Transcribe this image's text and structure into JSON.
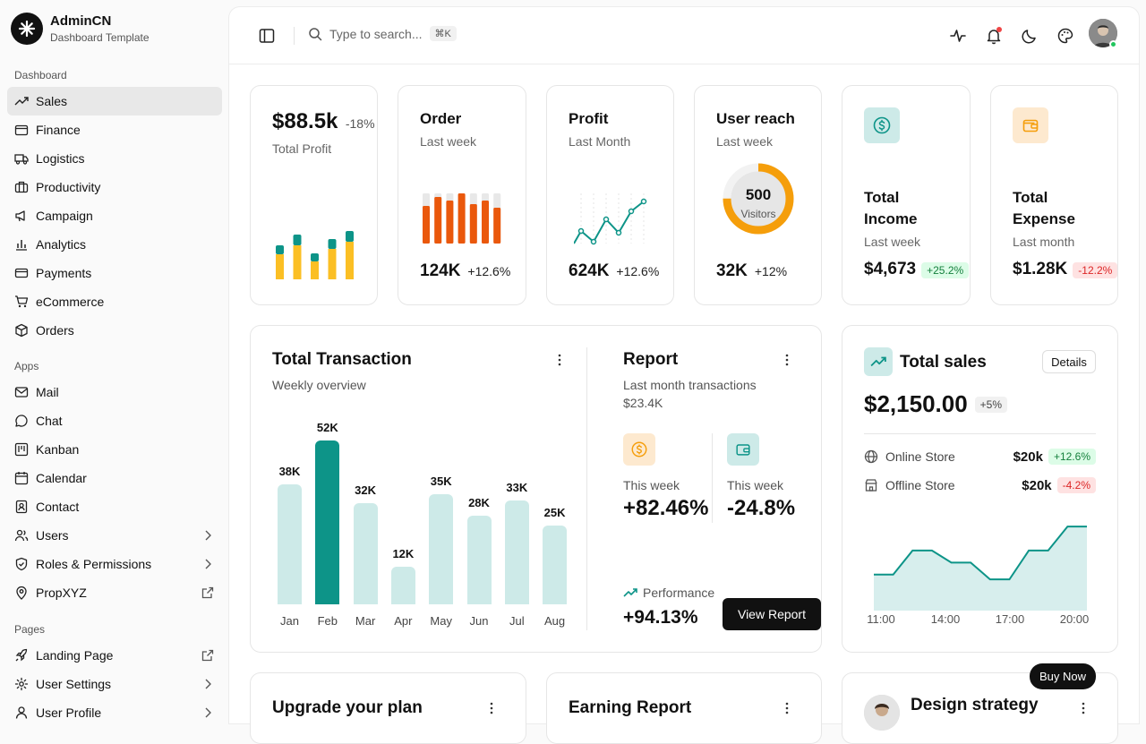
{
  "brand": {
    "name": "AdminCN",
    "subtitle": "Dashboard Template"
  },
  "sidebar": {
    "groups": [
      {
        "label": "Dashboard",
        "items": [
          {
            "label": "Sales",
            "icon": "trending-up-icon",
            "active": true
          },
          {
            "label": "Finance",
            "icon": "wallet-icon"
          },
          {
            "label": "Logistics",
            "icon": "truck-icon"
          },
          {
            "label": "Productivity",
            "icon": "briefcase-icon"
          },
          {
            "label": "Campaign",
            "icon": "megaphone-icon"
          },
          {
            "label": "Analytics",
            "icon": "bar-chart-icon"
          },
          {
            "label": "Payments",
            "icon": "credit-card-icon"
          },
          {
            "label": "eCommerce",
            "icon": "cart-icon"
          },
          {
            "label": "Orders",
            "icon": "package-icon"
          }
        ]
      },
      {
        "label": "Apps",
        "items": [
          {
            "label": "Mail",
            "icon": "mail-icon"
          },
          {
            "label": "Chat",
            "icon": "chat-icon"
          },
          {
            "label": "Kanban",
            "icon": "kanban-icon"
          },
          {
            "label": "Calendar",
            "icon": "calendar-icon"
          },
          {
            "label": "Contact",
            "icon": "contact-icon"
          },
          {
            "label": "Users",
            "icon": "users-icon",
            "trailing": "chevron-right-icon"
          },
          {
            "label": "Roles & Permissions",
            "icon": "shield-icon",
            "trailing": "chevron-right-icon"
          },
          {
            "label": "PropXYZ",
            "icon": "map-pin-icon",
            "trailing": "external-link-icon"
          }
        ]
      },
      {
        "label": "Pages",
        "items": [
          {
            "label": "Landing Page",
            "icon": "rocket-icon",
            "trailing": "external-link-icon"
          },
          {
            "label": "User Settings",
            "icon": "settings-icon",
            "trailing": "chevron-right-icon"
          },
          {
            "label": "User Profile",
            "icon": "user-icon",
            "trailing": "chevron-right-icon"
          }
        ]
      }
    ]
  },
  "topbar": {
    "search_placeholder": "Type to search...",
    "shortcut": "⌘K",
    "icons": [
      "sidebar-toggle-icon",
      "activity-icon",
      "bell-icon",
      "moon-icon",
      "palette-icon"
    ],
    "notification_dot_color": "#ef4444"
  },
  "kpis": {
    "total_profit": {
      "value": "$88.5k",
      "change": "-18%",
      "label": "Total Profit"
    },
    "order": {
      "title": "Order",
      "period": "Last week",
      "value": "124K",
      "change": "+12.6%"
    },
    "profit": {
      "title": "Profit",
      "period": "Last Month",
      "value": "624K",
      "change": "+12.6%"
    },
    "user_reach": {
      "title": "User reach",
      "period": "Last week",
      "center_value": "500",
      "center_label": "Visitors",
      "value": "32K",
      "change": "+12%",
      "progress": 0.75
    },
    "total_income": {
      "title": "Total Income",
      "period": "Last week",
      "value": "$4,673",
      "change": "+25.2%",
      "icon": "dollar-icon"
    },
    "total_expense": {
      "title": "Total Expense",
      "period": "Last month",
      "value": "$1.28K",
      "change": "-12.2%",
      "icon": "wallet-icon"
    }
  },
  "total_transaction": {
    "title": "Total Transaction",
    "subtitle": "Weekly overview",
    "chart_data": {
      "type": "bar",
      "categories": [
        "Jan",
        "Feb",
        "Mar",
        "Apr",
        "May",
        "Jun",
        "Jul",
        "Aug"
      ],
      "values": [
        38,
        52,
        32,
        12,
        35,
        28,
        33,
        25
      ],
      "data_labels": [
        "38K",
        "52K",
        "32K",
        "12K",
        "35K",
        "28K",
        "33K",
        "25K"
      ],
      "highlight_index": 1
    }
  },
  "report": {
    "title": "Report",
    "subtitle": "Last month transactions",
    "amount": "$23.4K",
    "stats": [
      {
        "label": "This week",
        "value": "+82.46%",
        "icon": "dollar-icon"
      },
      {
        "label": "This week",
        "value": "-24.8%",
        "icon": "wallet-icon"
      }
    ],
    "performance_label": "Performance",
    "performance_value": "+94.13%",
    "button": "View Report"
  },
  "total_sales": {
    "title": "Total sales",
    "details_button": "Details",
    "amount": "$2,150.00",
    "change": "+5%",
    "rows": [
      {
        "label": "Online Store",
        "amount": "$20k",
        "change": "+12.6%",
        "icon": "globe-icon"
      },
      {
        "label": "Offline Store",
        "amount": "$20k",
        "change": "-4.2%",
        "icon": "store-icon"
      }
    ],
    "chart_data": {
      "type": "area",
      "x_ticks": [
        "11:00",
        "14:00",
        "17:00",
        "20:00"
      ],
      "values": [
        2,
        2,
        3,
        3,
        2.5,
        2.5,
        1.8,
        1.8,
        3,
        3,
        4,
        4
      ]
    }
  },
  "bottom": {
    "upgrade_title": "Upgrade your plan",
    "earning_title": "Earning Report",
    "design_title": "Design strategy",
    "buy_now": "Buy Now"
  },
  "colors": {
    "teal": "#0d9488",
    "teal_light": "#cdeae8",
    "orange": "#ea580c",
    "yellow": "#fbbf24",
    "accent_dark": "#111111"
  }
}
